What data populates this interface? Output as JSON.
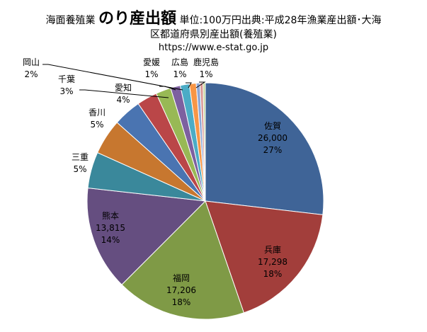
{
  "chart_data": {
    "type": "pie",
    "title_prefix": "海面養殖業",
    "title_main": "のり産出額",
    "title_suffix": "単位:100万円出典:平成28年漁業産出額･大海",
    "title_line2": "区都道府県別産出額(養殖業)",
    "source": "https://www.e-stat.go.jp",
    "slices": [
      {
        "name": "佐賀",
        "value": 26000,
        "value_label": "26,000",
        "pct": "27%",
        "color": "#3F6497"
      },
      {
        "name": "兵庫",
        "value": 17298,
        "value_label": "17,298",
        "pct": "18%",
        "color": "#A23E3B"
      },
      {
        "name": "福岡",
        "value": 17206,
        "value_label": "17,206",
        "pct": "18%",
        "color": "#7F9A46"
      },
      {
        "name": "熊本",
        "value": 13815,
        "value_label": "13,815",
        "pct": "14%",
        "color": "#654E80"
      },
      {
        "name": "三重",
        "value": 4800,
        "pct": "5%",
        "color": "#3A889B"
      },
      {
        "name": "香川",
        "value": 4700,
        "pct": "5%",
        "color": "#C7772F"
      },
      {
        "name": "愛知",
        "value": 3700,
        "pct": "4%",
        "color": "#4A74B1"
      },
      {
        "name": "千葉",
        "value": 2700,
        "pct": "3%",
        "color": "#BA4648"
      },
      {
        "name": "岡山",
        "value": 2000,
        "pct": "2%",
        "color": "#98B955"
      },
      {
        "name": "愛媛",
        "value": 1300,
        "pct": "1%",
        "color": "#7D60A0"
      },
      {
        "name": "広島",
        "value": 1200,
        "pct": "1%",
        "color": "#4BACC6"
      },
      {
        "name": "鹿児島",
        "value": 900,
        "pct": "1%",
        "color": "#F79646"
      },
      {
        "name": "",
        "value": 500,
        "color": "#8FA8D6"
      },
      {
        "name": "",
        "value": 400,
        "color": "#D99694"
      },
      {
        "name": "",
        "value": 300,
        "color": "#C3D69B"
      }
    ]
  }
}
